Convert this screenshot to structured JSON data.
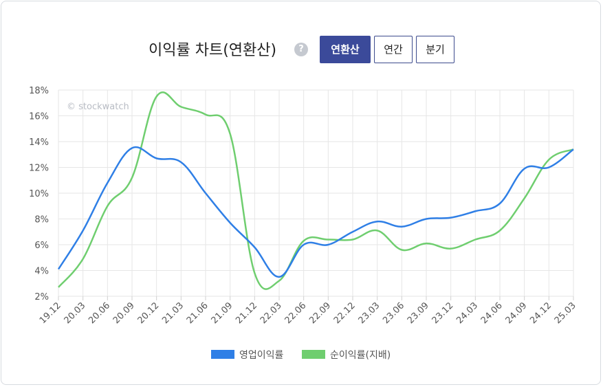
{
  "header": {
    "title": "이익률 차트(연환산)",
    "help_icon": "?",
    "tabs": [
      {
        "label": "연환산",
        "active": true
      },
      {
        "label": "연간",
        "active": false
      },
      {
        "label": "분기",
        "active": false
      }
    ]
  },
  "watermark": "© stockwatch",
  "colors": {
    "series1": "#2f7fe6",
    "series2": "#6fce6f",
    "grid": "#e6e6e6",
    "tab_active": "#3b4a9a"
  },
  "chart_data": {
    "type": "line",
    "title": "이익률 차트(연환산)",
    "x": [
      "19.12",
      "20.03",
      "20.06",
      "20.09",
      "20.12",
      "21.03",
      "21.06",
      "21.09",
      "21.12",
      "22.03",
      "22.06",
      "22.09",
      "22.12",
      "23.03",
      "23.06",
      "23.09",
      "23.12",
      "24.03",
      "24.06",
      "24.09",
      "24.12",
      "25.03"
    ],
    "y_ticks": [
      "2%",
      "4%",
      "6%",
      "8%",
      "10%",
      "12%",
      "14%",
      "16%",
      "18%"
    ],
    "ylim": [
      2,
      18
    ],
    "grid": true,
    "legend_position": "bottom",
    "series": [
      {
        "name": "영업이익률",
        "color": "#2f7fe6",
        "values": [
          4.1,
          7.1,
          10.8,
          13.5,
          12.7,
          12.4,
          10.0,
          7.7,
          5.8,
          3.5,
          6.0,
          6.0,
          7.0,
          7.8,
          7.4,
          8.0,
          8.1,
          8.6,
          9.2,
          11.9,
          12.0,
          13.4
        ]
      },
      {
        "name": "순이익률(지배)",
        "color": "#6fce6f",
        "values": [
          2.7,
          4.9,
          9.0,
          11.2,
          17.5,
          16.7,
          16.1,
          14.6,
          3.8,
          3.2,
          6.3,
          6.4,
          6.4,
          7.1,
          5.6,
          6.1,
          5.7,
          6.4,
          7.1,
          9.6,
          12.6,
          13.4
        ]
      }
    ]
  }
}
